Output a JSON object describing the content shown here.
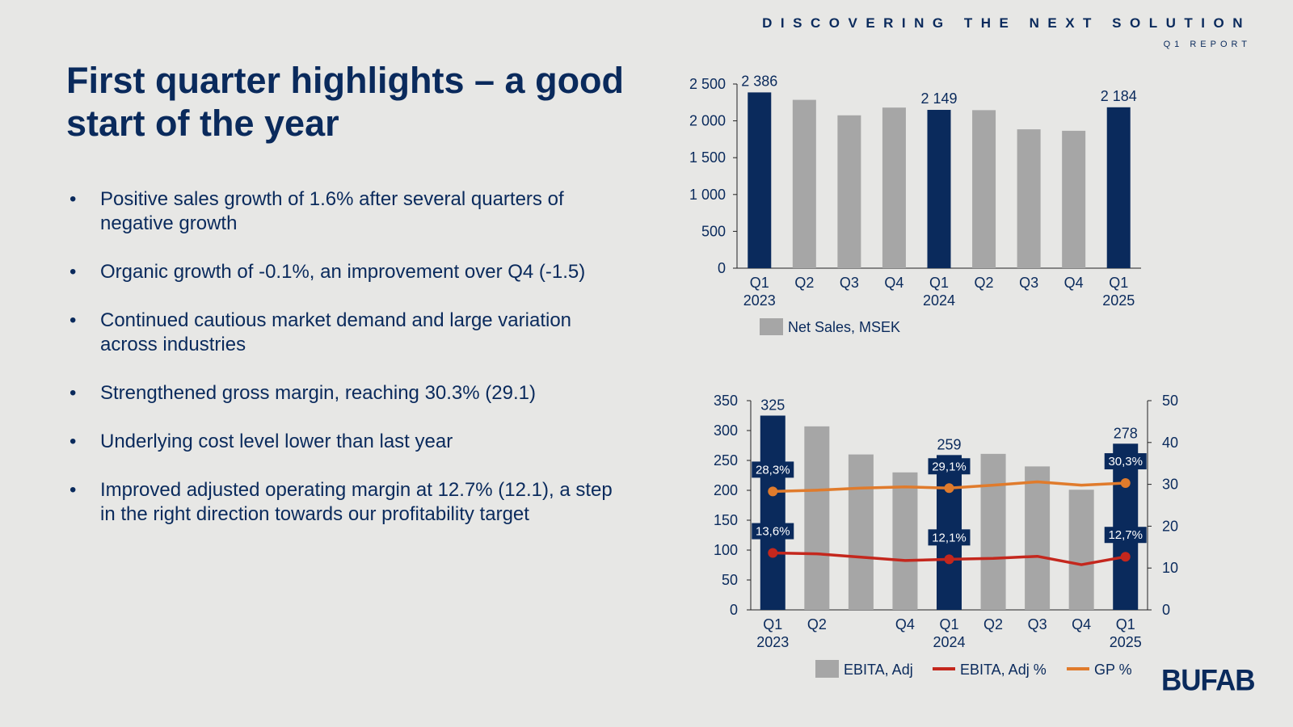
{
  "header": {
    "tagline": "DISCOVERING THE NEXT SOLUTION",
    "subtitle": "Q1 REPORT"
  },
  "title": "First quarter highlights – a good start of the year",
  "bullets": [
    "Positive sales growth of 1.6% after several quarters of negative growth",
    "Organic growth of -0.1%, an improvement over Q4 (-1.5)",
    "Continued cautious market demand and large variation across industries",
    "Strengthened gross margin, reaching 30.3% (29.1)",
    "Underlying cost level lower than last year",
    "Improved adjusted operating margin at 12.7% (12.1), a step in the right direction towards our profitability target"
  ],
  "bullet_symbol": "•",
  "logo": "BUFAB",
  "colors": {
    "highlight": "#0a2a5c",
    "bar_gray": "#a6a6a6",
    "ebita_line": "#c4271d",
    "gp_line": "#e07b2c",
    "background": "#e7e7e5"
  },
  "chart_data": [
    {
      "type": "bar",
      "title": "Net Sales, MSEK",
      "categories": [
        "Q1\n2023",
        "Q2",
        "Q3",
        "Q4",
        "Q1\n2024",
        "Q2",
        "Q3",
        "Q4",
        "Q1\n2025"
      ],
      "category_labels": [
        [
          "Q1",
          "2023"
        ],
        [
          "Q2"
        ],
        [
          "Q3"
        ],
        [
          "Q4"
        ],
        [
          "Q1",
          "2024"
        ],
        [
          "Q2"
        ],
        [
          "Q3"
        ],
        [
          "Q4"
        ],
        [
          "Q1",
          "2025"
        ]
      ],
      "values": [
        2386,
        2285,
        2075,
        2180,
        2149,
        2145,
        1885,
        1865,
        2184
      ],
      "highlight": [
        true,
        false,
        false,
        false,
        true,
        false,
        false,
        false,
        true
      ],
      "data_labels": [
        "2 386",
        "",
        "",
        "",
        "2 149",
        "",
        "",
        "",
        "2 184"
      ],
      "yticks": [
        0,
        500,
        1000,
        1500,
        2000,
        2500
      ],
      "ytick_labels": [
        "0",
        "500",
        "1 000",
        "1 500",
        "2 000",
        "2 500"
      ],
      "ylim": [
        0,
        2500
      ],
      "legend": [
        {
          "name": "Net Sales, MSEK",
          "kind": "bar"
        }
      ]
    },
    {
      "type": "bar+line",
      "categories": [
        "Q1\n2023",
        "Q2",
        "",
        "Q4",
        "Q1\n2024",
        "Q2",
        "Q3",
        "Q4",
        "Q1\n2025"
      ],
      "category_labels": [
        [
          "Q1",
          "2023"
        ],
        [
          "Q2"
        ],
        [],
        [
          "Q4"
        ],
        [
          "Q1",
          "2024"
        ],
        [
          "Q2"
        ],
        [
          "Q3"
        ],
        [
          "Q4"
        ],
        [
          "Q1",
          "2025"
        ]
      ],
      "series": [
        {
          "name": "EBITA, Adj",
          "kind": "bar",
          "axis": "left",
          "values": [
            325,
            307,
            260,
            230,
            259,
            261,
            240,
            201,
            278
          ],
          "highlight": [
            true,
            false,
            false,
            false,
            true,
            false,
            false,
            false,
            true
          ],
          "data_labels": [
            "325",
            "",
            "",
            "",
            "259",
            "",
            "",
            "",
            "278"
          ]
        },
        {
          "name": "EBITA, Adj %",
          "kind": "line",
          "axis": "right",
          "values": [
            13.6,
            13.4,
            12.6,
            11.8,
            12.1,
            12.3,
            12.8,
            10.8,
            12.7
          ],
          "markers": [
            true,
            false,
            false,
            false,
            true,
            false,
            false,
            false,
            true
          ],
          "data_labels": [
            "13,6%",
            "",
            "",
            "",
            "12,1%",
            "",
            "",
            "",
            "12,7%"
          ]
        },
        {
          "name": "GP %",
          "kind": "line",
          "axis": "right",
          "values": [
            28.3,
            28.6,
            29.1,
            29.4,
            29.1,
            29.8,
            30.6,
            29.8,
            30.3
          ],
          "markers": [
            true,
            false,
            false,
            false,
            true,
            false,
            false,
            false,
            true
          ],
          "data_labels": [
            "28,3%",
            "",
            "",
            "",
            "29,1%",
            "",
            "",
            "",
            "30,3%"
          ]
        }
      ],
      "yticks_left": [
        0,
        50,
        100,
        150,
        200,
        250,
        300,
        350
      ],
      "ylim_left": [
        0,
        350
      ],
      "yticks_right": [
        0,
        10,
        20,
        30,
        40,
        50
      ],
      "ylim_right": [
        0,
        50
      ],
      "legend": [
        {
          "name": "EBITA, Adj",
          "kind": "bar"
        },
        {
          "name": "EBITA, Adj %",
          "kind": "line"
        },
        {
          "name": "GP %",
          "kind": "line"
        }
      ]
    }
  ]
}
